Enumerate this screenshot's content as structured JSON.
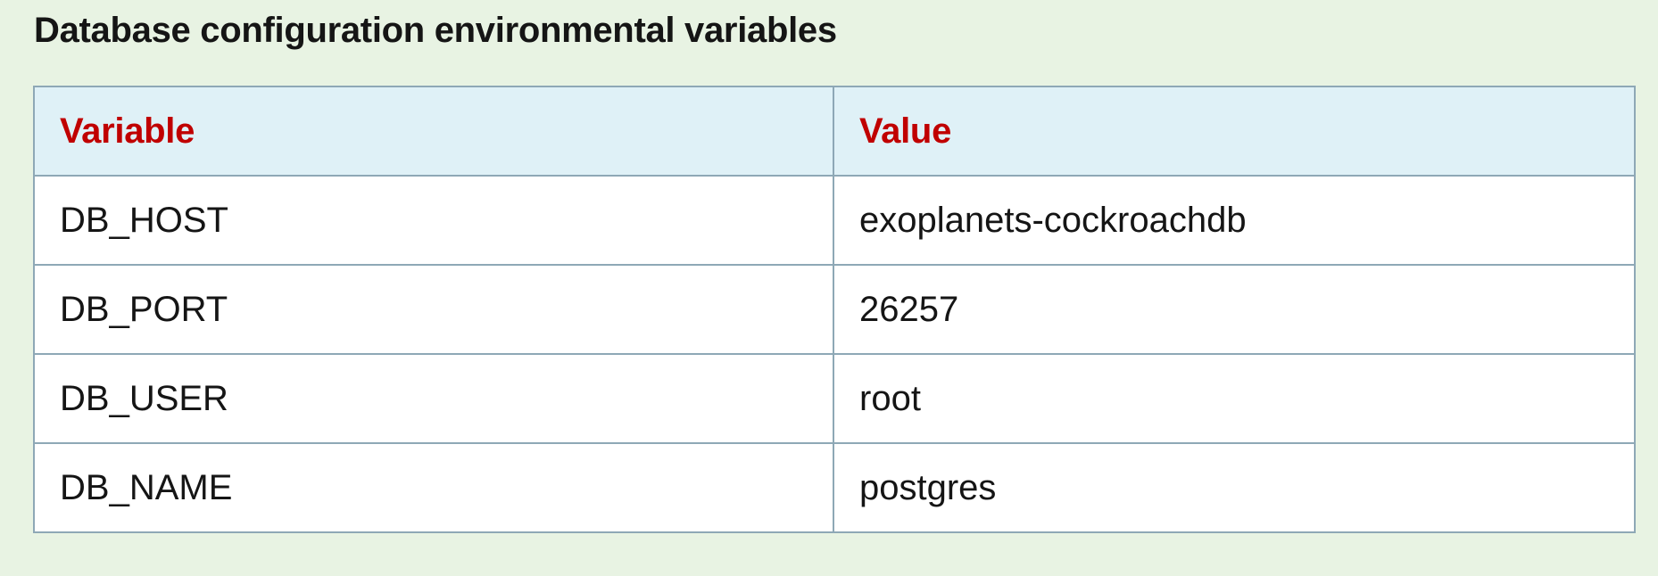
{
  "title": "Database configuration environmental variables",
  "table": {
    "headers": [
      "Variable",
      "Value"
    ],
    "rows": [
      [
        "DB_HOST",
        "exoplanets-cockroachdb"
      ],
      [
        "DB_PORT",
        "26257"
      ],
      [
        "DB_USER",
        "root"
      ],
      [
        "DB_NAME",
        "postgres"
      ]
    ]
  },
  "colors": {
    "background": "#e8f3e3",
    "header_background": "#dff1f7",
    "header_text": "#c00000",
    "border": "#8ea8b6",
    "cell_background": "#ffffff"
  }
}
